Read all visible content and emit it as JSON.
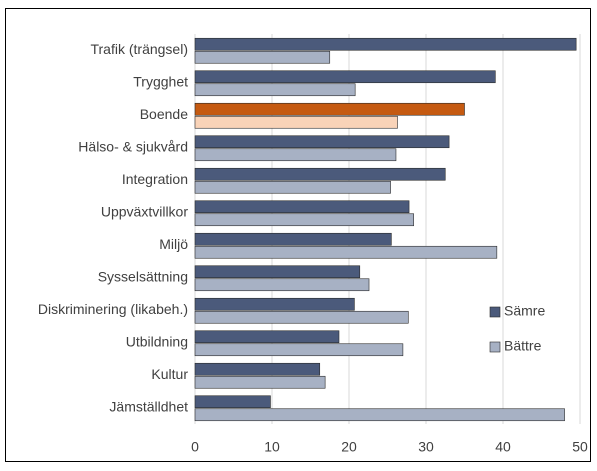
{
  "chart_data": {
    "type": "hbar",
    "categories": [
      "Trafik (trängsel)",
      "Trygghet",
      "Boende",
      "Hälso- & sjukvård",
      "Integration",
      "Uppväxtvillkor",
      "Miljö",
      "Sysselsättning",
      "Diskriminering (likabeh.)",
      "Utbildning",
      "Kultur",
      "Jämställdhet"
    ],
    "series": [
      {
        "name": "Sämre",
        "color": "#4b5a7b",
        "colors": [
          "#4b5a7b",
          "#4b5a7b",
          "#c55a11",
          "#4b5a7b",
          "#4b5a7b",
          "#4b5a7b",
          "#4b5a7b",
          "#4b5a7b",
          "#4b5a7b",
          "#4b5a7b",
          "#4b5a7b",
          "#4b5a7b"
        ],
        "values": [
          49.5,
          39,
          35,
          33,
          32.5,
          27.8,
          25.5,
          21.4,
          20.7,
          18.7,
          16.2,
          9.8
        ]
      },
      {
        "name": "Bättre",
        "color": "#a7b1c4",
        "colors": [
          "#a7b1c4",
          "#a7b1c4",
          "#f9d3b8",
          "#a7b1c4",
          "#a7b1c4",
          "#a7b1c4",
          "#a7b1c4",
          "#a7b1c4",
          "#a7b1c4",
          "#a7b1c4",
          "#a7b1c4",
          "#a7b1c4"
        ],
        "values": [
          17.5,
          20.8,
          26.3,
          26.1,
          25.4,
          28.4,
          39.2,
          22.6,
          27.7,
          27,
          16.9,
          48
        ]
      }
    ],
    "xlim": [
      0,
      50
    ],
    "xticks": [
      0,
      10,
      20,
      30,
      40,
      50
    ],
    "grid": true,
    "legend": "right"
  }
}
